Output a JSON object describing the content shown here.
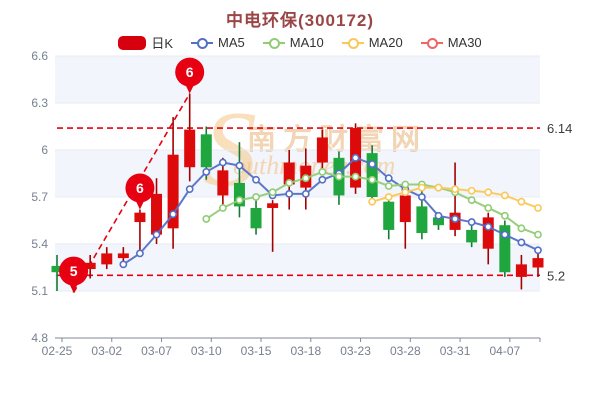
{
  "title": "中电环保(300172)",
  "legend": {
    "items": [
      {
        "label": "日K",
        "type": "candlestick",
        "color": "#d7000f"
      },
      {
        "label": "MA5",
        "type": "line",
        "color": "#5470c6"
      },
      {
        "label": "MA10",
        "type": "line",
        "color": "#91cc75"
      },
      {
        "label": "MA20",
        "type": "line",
        "color": "#fac858"
      },
      {
        "label": "MA30",
        "type": "line",
        "color": "#ee6666"
      }
    ]
  },
  "watermark": {
    "big_letter": "S",
    "line1": "南方财富网",
    "line2": "outhmoney.com"
  },
  "chart_data": {
    "type": "candlestick",
    "title": "中电环保(300172)",
    "ylim": [
      4.8,
      6.6
    ],
    "y_tick_values": [
      6.6,
      6.3,
      6.0,
      5.7,
      5.4,
      5.1,
      4.8
    ],
    "y_tick_labels": [
      "6.6",
      "6.3",
      "6",
      "5.7",
      "5.4",
      "5.1",
      "4.8"
    ],
    "x_tick_labels": [
      "02-25",
      "03-02",
      "03-07",
      "03-10",
      "03-15",
      "03-18",
      "03-23",
      "03-28",
      "03-31",
      "04-07"
    ],
    "x_tick_indices": [
      0,
      3,
      6,
      9,
      12,
      15,
      18,
      21,
      24,
      27
    ],
    "candles": [
      {
        "date": "02-25",
        "o": 5.26,
        "c": 5.22,
        "h": 5.33,
        "l": 5.1
      },
      {
        "date": "02-28",
        "o": 5.2,
        "c": 5.15,
        "h": 5.24,
        "l": 5.09
      },
      {
        "date": "03-01",
        "o": 5.24,
        "c": 5.28,
        "h": 5.33,
        "l": 5.18
      },
      {
        "date": "03-02",
        "o": 5.27,
        "c": 5.34,
        "h": 5.38,
        "l": 5.24
      },
      {
        "date": "03-03",
        "o": 5.31,
        "c": 5.34,
        "h": 5.38,
        "l": 5.27
      },
      {
        "date": "03-04",
        "o": 5.54,
        "c": 5.6,
        "h": 5.62,
        "l": 5.36
      },
      {
        "date": "03-07",
        "o": 5.46,
        "c": 5.72,
        "h": 5.82,
        "l": 5.4
      },
      {
        "date": "03-08",
        "o": 5.5,
        "c": 5.97,
        "h": 6.21,
        "l": 5.37
      },
      {
        "date": "03-09",
        "o": 5.89,
        "c": 6.13,
        "h": 6.36,
        "l": 5.8
      },
      {
        "date": "03-10",
        "o": 6.1,
        "c": 5.89,
        "h": 6.15,
        "l": 5.81
      },
      {
        "date": "03-11",
        "o": 5.71,
        "c": 5.87,
        "h": 5.95,
        "l": 5.65
      },
      {
        "date": "03-14",
        "o": 5.79,
        "c": 5.64,
        "h": 6.05,
        "l": 5.57
      },
      {
        "date": "03-15",
        "o": 5.63,
        "c": 5.5,
        "h": 5.7,
        "l": 5.46
      },
      {
        "date": "03-16",
        "o": 5.63,
        "c": 5.66,
        "h": 5.68,
        "l": 5.35
      },
      {
        "date": "03-17",
        "o": 5.78,
        "c": 5.92,
        "h": 6.0,
        "l": 5.62
      },
      {
        "date": "03-18",
        "o": 5.76,
        "c": 5.9,
        "h": 6.01,
        "l": 5.62
      },
      {
        "date": "03-21",
        "o": 5.92,
        "c": 6.08,
        "h": 6.13,
        "l": 5.88
      },
      {
        "date": "03-22",
        "o": 5.95,
        "c": 5.71,
        "h": 5.99,
        "l": 5.65
      },
      {
        "date": "03-23",
        "o": 5.76,
        "c": 6.14,
        "h": 6.17,
        "l": 5.72
      },
      {
        "date": "03-24",
        "o": 5.98,
        "c": 5.7,
        "h": 6.03,
        "l": 5.65
      },
      {
        "date": "03-25",
        "o": 5.67,
        "c": 5.49,
        "h": 5.71,
        "l": 5.43
      },
      {
        "date": "03-28",
        "o": 5.54,
        "c": 5.71,
        "h": 5.76,
        "l": 5.37
      },
      {
        "date": "03-29",
        "o": 5.64,
        "c": 5.47,
        "h": 5.74,
        "l": 5.43
      },
      {
        "date": "03-30",
        "o": 5.57,
        "c": 5.52,
        "h": 5.6,
        "l": 5.49
      },
      {
        "date": "03-31",
        "o": 5.49,
        "c": 5.6,
        "h": 5.92,
        "l": 5.45
      },
      {
        "date": "04-01",
        "o": 5.49,
        "c": 5.41,
        "h": 5.52,
        "l": 5.38
      },
      {
        "date": "04-06",
        "o": 5.37,
        "c": 5.57,
        "h": 5.6,
        "l": 5.27
      },
      {
        "date": "04-07",
        "o": 5.52,
        "c": 5.22,
        "h": 5.55,
        "l": 5.19
      },
      {
        "date": "04-08",
        "o": 5.19,
        "c": 5.27,
        "h": 5.33,
        "l": 5.11
      },
      {
        "date": "04-11",
        "o": 5.25,
        "c": 5.31,
        "h": 5.38,
        "l": 5.19
      }
    ],
    "series": [
      {
        "name": "MA5",
        "start": 4,
        "color": "#5470c6",
        "values": [
          5.27,
          5.34,
          5.46,
          5.59,
          5.75,
          5.86,
          5.92,
          5.9,
          5.81,
          5.71,
          5.72,
          5.72,
          5.81,
          5.85,
          5.95,
          5.91,
          5.82,
          5.75,
          5.7,
          5.58,
          5.56,
          5.54,
          5.51,
          5.46,
          5.41,
          5.36
        ]
      },
      {
        "name": "MA10",
        "start": 9,
        "color": "#91cc75",
        "values": [
          5.56,
          5.63,
          5.68,
          5.7,
          5.73,
          5.79,
          5.82,
          5.86,
          5.83,
          5.83,
          5.81,
          5.77,
          5.78,
          5.78,
          5.76,
          5.73,
          5.68,
          5.63,
          5.58,
          5.5,
          5.46
        ]
      },
      {
        "name": "MA20",
        "start": 19,
        "color": "#fac858",
        "values": [
          5.67,
          5.7,
          5.73,
          5.76,
          5.76,
          5.75,
          5.74,
          5.73,
          5.71,
          5.67,
          5.63
        ]
      },
      {
        "name": "MA30",
        "start": 29,
        "color": "#ee6666",
        "values": []
      }
    ],
    "reference_lines": [
      {
        "value": 6.14,
        "label": "6.14"
      },
      {
        "value": 5.2,
        "label": "5.2"
      }
    ],
    "trend_line": {
      "from_index": 1,
      "from_price": 5.09,
      "to_index": 8,
      "to_price": 6.36
    },
    "markers": [
      {
        "label": "5",
        "index": 1,
        "price": 5.09
      },
      {
        "label": "6",
        "index": 5,
        "price": 5.62
      },
      {
        "label": "6",
        "index": 8,
        "price": 6.36
      }
    ],
    "colors": {
      "up": "#dc0a0a",
      "up_wick": "#a40000",
      "down": "#1fa63e",
      "down_wick": "#157a34",
      "dashed": "#e60012",
      "balloon": "#e60012",
      "axis_text": "#76808f",
      "axis_line": "#828a96",
      "grid": "#e8ebf3",
      "stripe": "#f2f5fb",
      "ref_label": "#3c3c3c",
      "title": "#9a4646"
    }
  }
}
